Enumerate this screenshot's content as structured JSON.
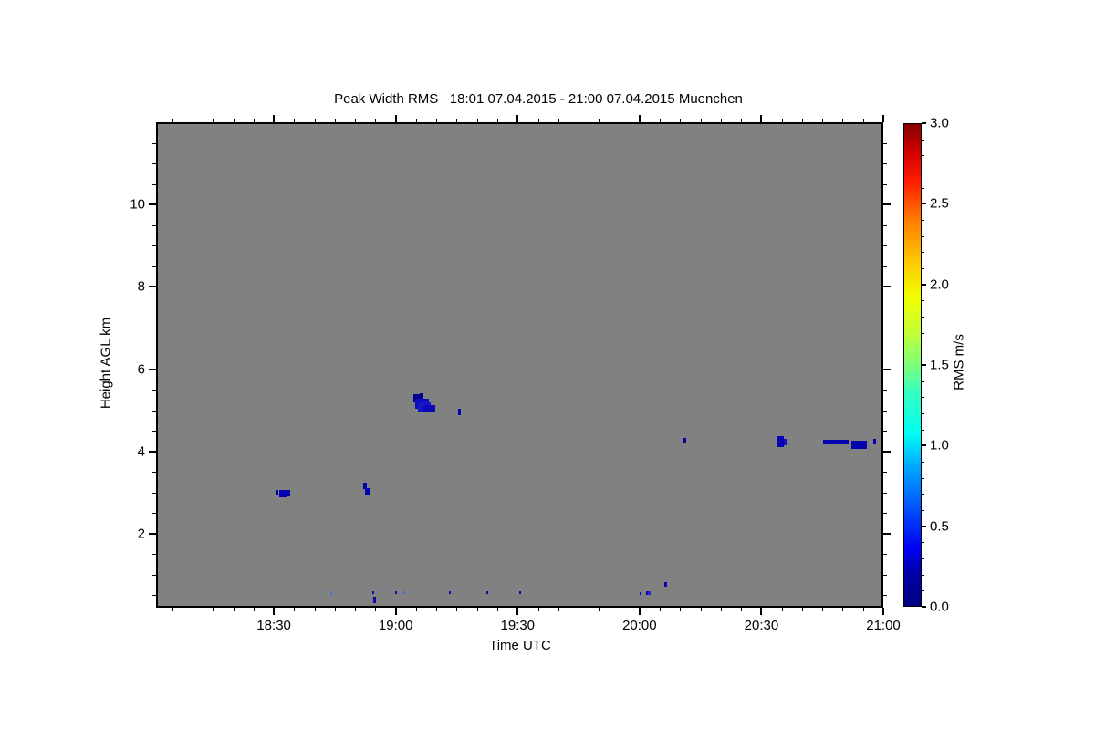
{
  "chart_data": {
    "type": "heatmap",
    "title": "Peak Width RMS   18:01 07.04.2015 - 21:00 07.04.2015 Muenchen",
    "xlabel": "Time UTC",
    "ylabel": "Height AGL km",
    "x_range_hours": [
      18.0167,
      21.0
    ],
    "x_ticks": [
      "18:30",
      "19:00",
      "19:30",
      "20:00",
      "20:30",
      "21:00"
    ],
    "x_minor_tick_minutes": 5,
    "y_range_km": [
      0.2,
      12.0
    ],
    "y_ticks": [
      2,
      4,
      6,
      8,
      10
    ],
    "y_minor_tick_km": 0.5,
    "no_data_color": "#818181",
    "frame_color": "#000000",
    "colorbar": {
      "label": "RMS m/s",
      "min": 0.0,
      "max": 3.0,
      "ticks": [
        "0.0",
        "0.5",
        "1.0",
        "1.5",
        "2.0",
        "2.5",
        "3.0"
      ],
      "minor_tick_step": 0.1,
      "palette": "jet",
      "stops": [
        {
          "p": 0.0,
          "c": "#000084"
        },
        {
          "p": 0.06,
          "c": "#0000a0"
        },
        {
          "p": 0.12,
          "c": "#0000f2"
        },
        {
          "p": 0.22,
          "c": "#0063ff"
        },
        {
          "p": 0.3,
          "c": "#00b4ff"
        },
        {
          "p": 0.36,
          "c": "#00fff2"
        },
        {
          "p": 0.44,
          "c": "#33ffc4"
        },
        {
          "p": 0.5,
          "c": "#7dff79"
        },
        {
          "p": 0.57,
          "c": "#c4ff33"
        },
        {
          "p": 0.64,
          "c": "#f2ff00"
        },
        {
          "p": 0.72,
          "c": "#ffc400"
        },
        {
          "p": 0.8,
          "c": "#ff7d00"
        },
        {
          "p": 0.88,
          "c": "#ff1e00"
        },
        {
          "p": 0.94,
          "c": "#d40000"
        },
        {
          "p": 1.0,
          "c": "#850000"
        }
      ]
    },
    "marks": [
      {
        "t0": 18.511,
        "t1": 18.519,
        "h0": 2.92,
        "h1": 3.06,
        "rms": 0.15,
        "c": "#0000a6"
      },
      {
        "t0": 18.522,
        "t1": 18.556,
        "h0": 2.89,
        "h1": 3.07,
        "rms": 0.2,
        "c": "#0202b2"
      },
      {
        "t0": 18.556,
        "t1": 18.567,
        "h0": 2.91,
        "h1": 3.07,
        "rms": 0.2,
        "c": "#0202b2"
      },
      {
        "t0": 18.867,
        "t1": 18.88,
        "h0": 3.08,
        "h1": 3.24,
        "rms": 0.2,
        "c": "#0101ae"
      },
      {
        "t0": 18.874,
        "t1": 18.893,
        "h0": 2.96,
        "h1": 3.1,
        "rms": 0.2,
        "c": "#0101ae"
      },
      {
        "t0": 19.073,
        "t1": 19.103,
        "h0": 5.18,
        "h1": 5.4,
        "rms": 0.1,
        "c": "#00008c"
      },
      {
        "t0": 19.1,
        "t1": 19.113,
        "h0": 5.28,
        "h1": 5.42,
        "rms": 0.1,
        "c": "#000090"
      },
      {
        "t0": 19.08,
        "t1": 19.136,
        "h0": 5.04,
        "h1": 5.27,
        "rms": 0.25,
        "c": "#0c0cc0"
      },
      {
        "t0": 19.092,
        "t1": 19.144,
        "h0": 4.96,
        "h1": 5.18,
        "rms": 0.3,
        "c": "#1515c8"
      },
      {
        "t0": 19.114,
        "t1": 19.162,
        "h0": 4.96,
        "h1": 5.12,
        "rms": 0.2,
        "c": "#0808b8"
      },
      {
        "t0": 19.256,
        "t1": 19.267,
        "h0": 4.89,
        "h1": 5.04,
        "rms": 0.2,
        "c": "#0101b0"
      },
      {
        "t0": 20.181,
        "t1": 20.192,
        "h0": 4.2,
        "h1": 4.33,
        "rms": 0.15,
        "c": "#0101a8"
      },
      {
        "t0": 20.566,
        "t1": 20.592,
        "h0": 4.11,
        "h1": 4.36,
        "rms": 0.2,
        "c": "#0404b4"
      },
      {
        "t0": 20.592,
        "t1": 20.603,
        "h0": 4.15,
        "h1": 4.3,
        "rms": 0.3,
        "c": "#1212c4"
      },
      {
        "t0": 20.753,
        "t1": 20.858,
        "h0": 4.16,
        "h1": 4.29,
        "rms": 0.2,
        "c": "#0303b0"
      },
      {
        "t0": 20.87,
        "t1": 20.933,
        "h0": 4.07,
        "h1": 4.27,
        "rms": 0.2,
        "c": "#0404ae"
      },
      {
        "t0": 20.959,
        "t1": 20.97,
        "h0": 4.18,
        "h1": 4.31,
        "rms": 0.2,
        "c": "#0101ac"
      },
      {
        "t0": 18.732,
        "t1": 18.741,
        "h0": 0.52,
        "h1": 0.6,
        "rms": 0.55,
        "c": "#4477e0"
      },
      {
        "t0": 18.902,
        "t1": 18.908,
        "h0": 0.53,
        "h1": 0.6,
        "rms": 0.2,
        "c": "#0a0ab4"
      },
      {
        "t0": 18.908,
        "t1": 18.918,
        "h0": 0.31,
        "h1": 0.47,
        "rms": 0.2,
        "c": "#0606b2"
      },
      {
        "t0": 18.996,
        "t1": 19.002,
        "h0": 0.53,
        "h1": 0.59,
        "rms": 0.2,
        "c": "#0a0ab4"
      },
      {
        "t0": 19.032,
        "t1": 19.04,
        "h0": 0.53,
        "h1": 0.59,
        "rms": 0.5,
        "c": "#3f6fdd"
      },
      {
        "t0": 19.22,
        "t1": 19.227,
        "h0": 0.53,
        "h1": 0.59,
        "rms": 0.2,
        "c": "#0a0ab4"
      },
      {
        "t0": 19.37,
        "t1": 19.377,
        "h0": 0.53,
        "h1": 0.59,
        "rms": 0.2,
        "c": "#0a0ab4"
      },
      {
        "t0": 19.508,
        "t1": 19.515,
        "h0": 0.53,
        "h1": 0.59,
        "rms": 0.2,
        "c": "#0a0ab4"
      },
      {
        "t0": 20.002,
        "t1": 20.009,
        "h0": 0.52,
        "h1": 0.58,
        "rms": 0.2,
        "c": "#0a0ab4"
      },
      {
        "t0": 20.026,
        "t1": 20.033,
        "h0": 0.52,
        "h1": 0.59,
        "rms": 0.2,
        "c": "#0a0ab4"
      },
      {
        "t0": 20.036,
        "t1": 20.046,
        "h0": 0.52,
        "h1": 0.59,
        "rms": 0.3,
        "c": "#2a2ac8"
      },
      {
        "t0": 20.102,
        "t1": 20.113,
        "h0": 0.71,
        "h1": 0.83,
        "rms": 0.2,
        "c": "#0606b0"
      }
    ]
  }
}
